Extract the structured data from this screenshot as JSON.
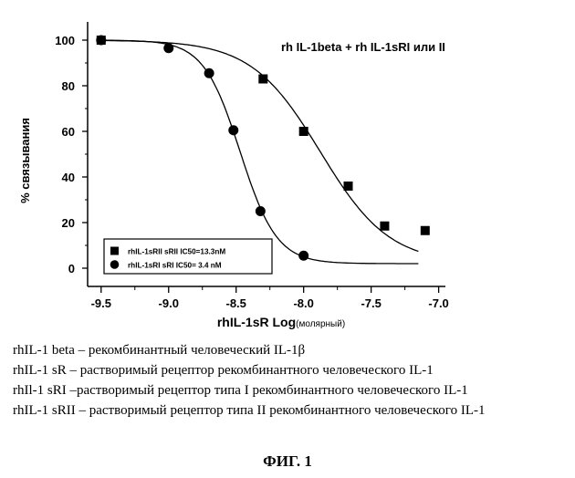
{
  "chart_data": {
    "type": "scatter",
    "title": "rh IL-1beta + rh IL-1sRI или II",
    "xlabel_main": "rhIL-1sR Log",
    "xlabel_small": "(молярный)",
    "ylabel": "% связывания",
    "xlim": [
      -9.6,
      -6.95
    ],
    "ylim": [
      -8,
      108
    ],
    "xticks": [
      -9.5,
      -9.0,
      -8.5,
      -8.0,
      -7.5,
      -7.0
    ],
    "xtick_labels": [
      "-9.5",
      "-9.0",
      "-8.5",
      "-8.0",
      "-7.5",
      "-7.0"
    ],
    "yticks": [
      0,
      20,
      40,
      60,
      80,
      100
    ],
    "ytick_labels": [
      "0",
      "20",
      "40",
      "60",
      "80",
      "100"
    ],
    "grid": false,
    "legend_position": "bottom-left",
    "series": [
      {
        "name": "rhIL-1sRII sRII IC50=13.3nM",
        "marker": "square",
        "x": [
          -9.5,
          -8.3,
          -8.0,
          -7.67,
          -7.4,
          -7.1
        ],
        "y": [
          100,
          83,
          60,
          36,
          18.5,
          16.5
        ],
        "ic50_log": -7.876,
        "bottom": 2,
        "top": 100,
        "hill": 1.7,
        "curve_range": [
          -9.5,
          -7.15
        ]
      },
      {
        "name": "rhIL-1sRI sRI IC50= 3.4 nM",
        "marker": "circle",
        "x": [
          -9.5,
          -9.0,
          -8.7,
          -8.52,
          -8.32,
          -8.0
        ],
        "y": [
          100,
          96.5,
          85.5,
          60.5,
          25,
          5.5
        ],
        "ic50_log": -8.47,
        "bottom": 2,
        "top": 100,
        "hill": 3.2,
        "curve_range": [
          -9.5,
          -7.15
        ]
      }
    ]
  },
  "caption": {
    "lines": [
      "rhIL-1 beta – рекомбинантный человеческий IL-1β",
      "rhIL-1 sR – растворимый рецептор рекомбинантного человеческого IL-1",
      "rhIl-1 sRI –растворимый рецептор типа I рекомбинантного человеческого IL-1",
      "rhIL-1 sRII – растворимый рецептор типа II рекомбинантного человеческого IL-1"
    ],
    "figure_label": "ФИГ. 1"
  }
}
